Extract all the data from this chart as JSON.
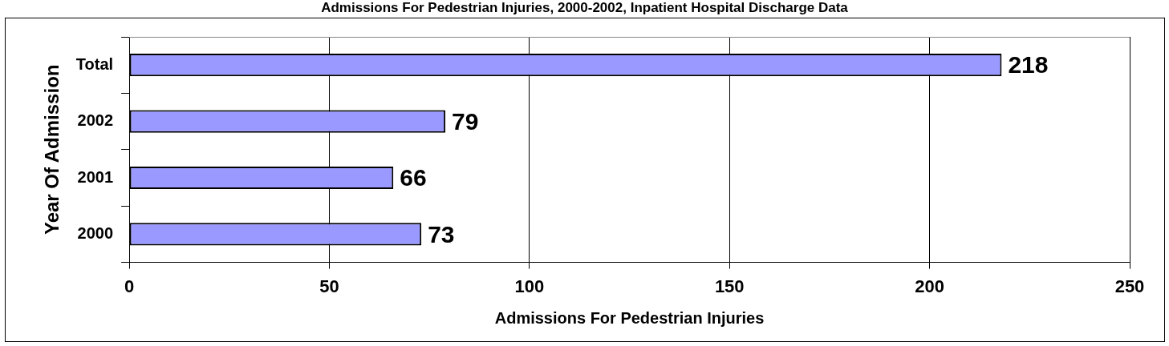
{
  "chart_data": {
    "type": "bar",
    "orientation": "horizontal",
    "title": "Admissions For Pedestrian Injuries, 2000-2002, Inpatient Hospital Discharge Data",
    "xlabel": "Admissions For Pedestrian Injuries",
    "ylabel": "Year Of Admission",
    "categories": [
      "Total",
      "2002",
      "2001",
      "2000"
    ],
    "values": [
      218,
      79,
      66,
      73
    ],
    "color": "#9999ff",
    "xlim": [
      0,
      250
    ],
    "xticks": [
      0,
      50,
      100,
      150,
      200,
      250
    ],
    "grid": "x",
    "legend": false,
    "data_labels": true
  }
}
